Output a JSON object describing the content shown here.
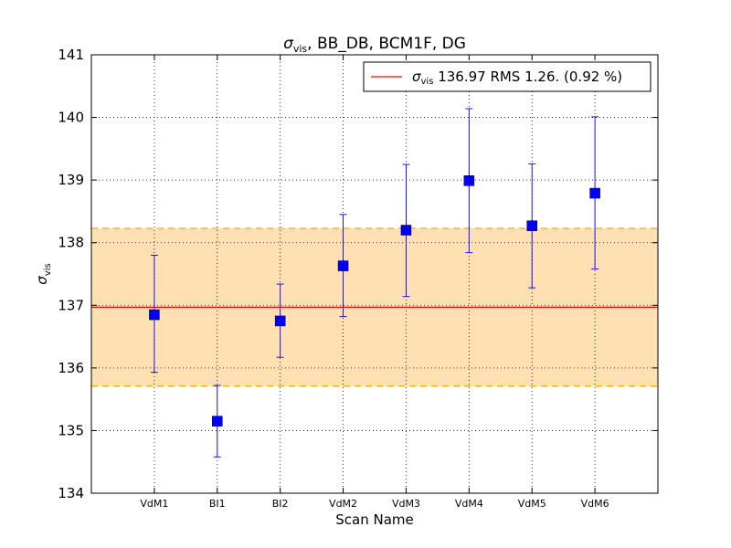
{
  "chart_data": {
    "type": "scatter",
    "title": "σ_vis, BB_DB, BCM1F, DG",
    "title_sym": "σ",
    "title_sub": "vis",
    "title_rest": ", BB_DB, BCM1F, DG",
    "xlabel": "Scan Name",
    "ylabel_sym": "σ",
    "ylabel_sub": "vis",
    "ylim": [
      134,
      141
    ],
    "yticks": [
      "134",
      "135",
      "136",
      "137",
      "138",
      "139",
      "140",
      "141"
    ],
    "categories": [
      "VdM1",
      "BI1",
      "BI2",
      "VdM2",
      "VdM3",
      "VdM4",
      "VdM5",
      "VdM6"
    ],
    "series": [
      {
        "values": [
          136.85,
          135.15,
          136.75,
          137.63,
          138.2,
          138.99,
          138.27,
          138.79
        ],
        "err_low": [
          135.93,
          134.58,
          136.17,
          136.82,
          137.14,
          137.84,
          137.28,
          137.58
        ],
        "err_high": [
          137.8,
          135.72,
          137.34,
          138.45,
          139.25,
          140.14,
          139.26,
          140.01
        ]
      }
    ],
    "mean": 136.97,
    "band": [
      135.71,
      138.23
    ],
    "legend": {
      "sym": "σ",
      "sub": "vis",
      "text": " 136.97 RMS 1.26. (0.92 %)",
      "placement": "top-right"
    },
    "grid": true,
    "colors": {
      "marker": "#0000ff",
      "mean_line": "#ff0000",
      "band_fill": "#ffe0b2",
      "band_edge": "#ffa500"
    }
  }
}
